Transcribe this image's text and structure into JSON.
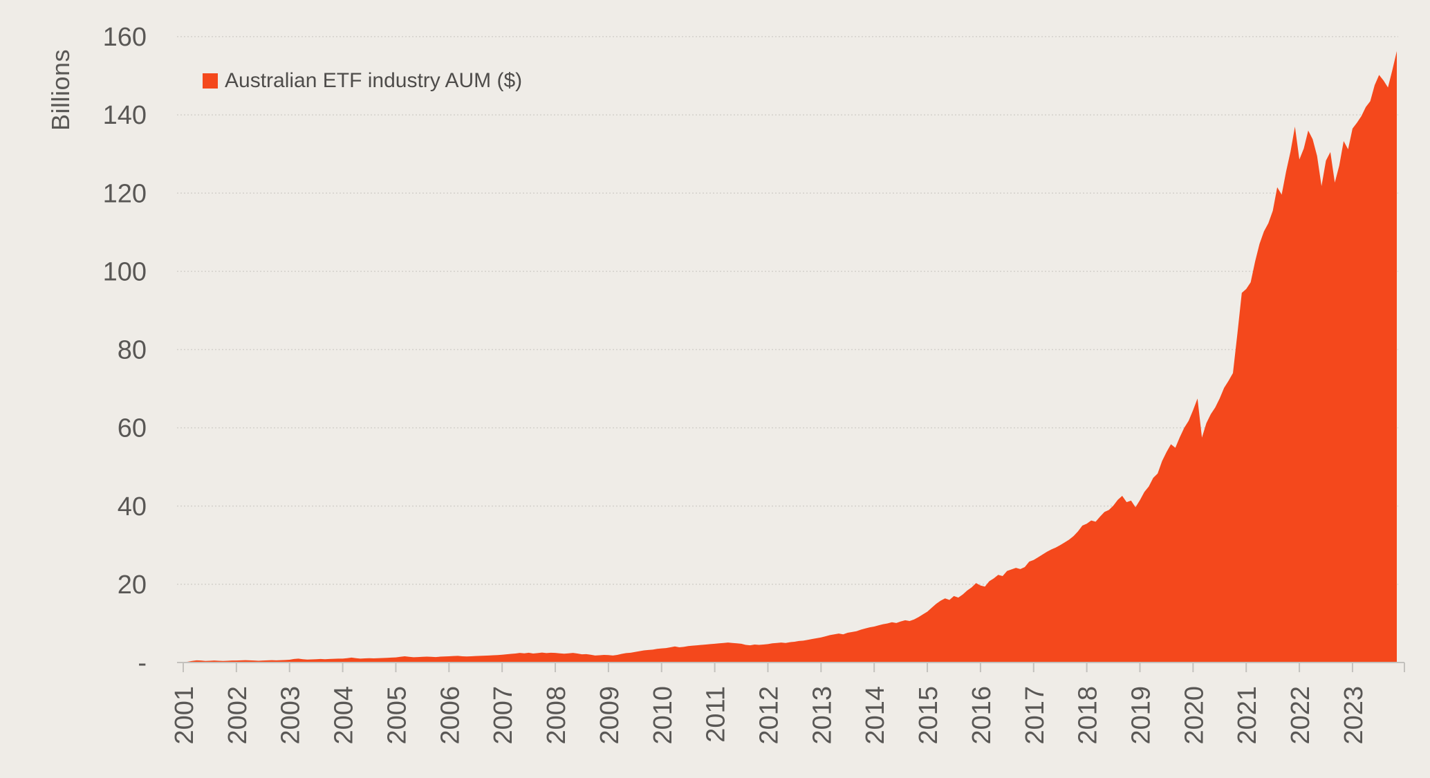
{
  "figure": {
    "background_color": "#EFECE7",
    "text_color": "#595755",
    "gridline_color": "#D3D0CB",
    "axis_line_color": "#C3C1BD"
  },
  "legend": {
    "label": "Australian ETF industry AUM ($)",
    "swatch_color": "#F4481C",
    "position": "top-left"
  },
  "y_axis": {
    "title": "Billions",
    "tick_labels": [
      "160",
      "140",
      "120",
      "100",
      "80",
      "60",
      "40",
      "20",
      "-"
    ],
    "tick_values": [
      160,
      140,
      120,
      100,
      80,
      60,
      40,
      20,
      0
    ]
  },
  "x_axis": {
    "tick_labels": [
      "2001",
      "2002",
      "2003",
      "2004",
      "2005",
      "2006",
      "2007",
      "2008",
      "2009",
      "2010",
      "2011",
      "2012",
      "2013",
      "2014",
      "2015",
      "2016",
      "2017",
      "2018",
      "2019",
      "2020",
      "2021",
      "2022",
      "2023"
    ],
    "label_rotation_degrees": -90
  },
  "chart_data": {
    "type": "area",
    "title": "",
    "xlabel": "",
    "ylabel": "Billions",
    "ylim": [
      0,
      160
    ],
    "grid": true,
    "legend_position": "top-left",
    "x_start": "2001-01",
    "x_end": "2023-11",
    "x_frequency": "monthly",
    "x_year_ticks": [
      2001,
      2002,
      2003,
      2004,
      2005,
      2006,
      2007,
      2008,
      2009,
      2010,
      2011,
      2012,
      2013,
      2014,
      2015,
      2016,
      2017,
      2018,
      2019,
      2020,
      2021,
      2022,
      2023
    ],
    "series": [
      {
        "name": "Australian ETF industry AUM ($)",
        "color": "#F4481C",
        "unit": "billions AUD",
        "values": [
          0.1,
          0.2,
          0.4,
          0.55,
          0.5,
          0.4,
          0.45,
          0.5,
          0.45,
          0.4,
          0.45,
          0.5,
          0.5,
          0.55,
          0.6,
          0.55,
          0.5,
          0.45,
          0.5,
          0.55,
          0.6,
          0.55,
          0.6,
          0.65,
          0.7,
          0.9,
          1.0,
          0.85,
          0.75,
          0.8,
          0.85,
          0.9,
          0.85,
          0.9,
          0.95,
          1.0,
          1.0,
          1.1,
          1.25,
          1.1,
          1.0,
          1.05,
          1.1,
          1.05,
          1.1,
          1.15,
          1.2,
          1.25,
          1.3,
          1.45,
          1.6,
          1.45,
          1.35,
          1.4,
          1.45,
          1.5,
          1.45,
          1.4,
          1.5,
          1.55,
          1.6,
          1.65,
          1.7,
          1.6,
          1.55,
          1.6,
          1.65,
          1.7,
          1.75,
          1.8,
          1.85,
          1.9,
          2.0,
          2.1,
          2.2,
          2.3,
          2.45,
          2.35,
          2.5,
          2.3,
          2.4,
          2.55,
          2.4,
          2.5,
          2.45,
          2.35,
          2.25,
          2.35,
          2.45,
          2.3,
          2.1,
          2.15,
          2.0,
          1.8,
          1.85,
          1.95,
          1.9,
          1.8,
          1.95,
          2.2,
          2.4,
          2.5,
          2.7,
          2.9,
          3.1,
          3.2,
          3.3,
          3.5,
          3.6,
          3.7,
          3.9,
          4.1,
          3.9,
          4.0,
          4.2,
          4.3,
          4.4,
          4.5,
          4.6,
          4.7,
          4.8,
          4.9,
          5.0,
          5.1,
          5.0,
          4.9,
          4.8,
          4.5,
          4.4,
          4.6,
          4.5,
          4.6,
          4.7,
          4.9,
          5.0,
          5.1,
          5.0,
          5.2,
          5.3,
          5.5,
          5.6,
          5.8,
          6.0,
          6.2,
          6.4,
          6.7,
          7.0,
          7.2,
          7.4,
          7.2,
          7.6,
          7.8,
          8.0,
          8.4,
          8.7,
          9.0,
          9.2,
          9.5,
          9.8,
          10.0,
          10.3,
          10.1,
          10.5,
          10.8,
          10.6,
          11.0,
          11.6,
          12.3,
          13.0,
          14.0,
          15.0,
          15.8,
          16.4,
          16.0,
          17.0,
          16.6,
          17.4,
          18.4,
          19.2,
          20.3,
          19.7,
          19.4,
          20.8,
          21.5,
          22.4,
          22.1,
          23.4,
          23.8,
          24.2,
          23.9,
          24.4,
          25.8,
          26.2,
          26.9,
          27.6,
          28.3,
          28.9,
          29.4,
          30.0,
          30.7,
          31.4,
          32.3,
          33.5,
          35.0,
          35.5,
          36.3,
          36.0,
          37.3,
          38.5,
          39.0,
          40.1,
          41.6,
          42.6,
          41.0,
          41.4,
          39.7,
          41.5,
          43.6,
          45.0,
          47.2,
          48.3,
          51.5,
          53.8,
          55.8,
          54.9,
          57.6,
          60.0,
          61.8,
          64.5,
          67.5,
          57.5,
          61.2,
          63.5,
          65.2,
          67.5,
          70.2,
          72.0,
          74.0,
          84.0,
          94.5,
          95.5,
          97.2,
          102.5,
          107.0,
          110.2,
          112.3,
          115.5,
          121.5,
          119.6,
          125.5,
          130.6,
          137.0,
          128.6,
          131.4,
          136.0,
          133.8,
          129.5,
          121.8,
          128.3,
          130.5,
          122.7,
          127.0,
          133.3,
          131.2,
          136.5,
          138.0,
          139.7,
          142.0,
          143.5,
          147.6,
          150.2,
          148.8,
          147.0,
          151.5,
          156.3
        ]
      }
    ]
  }
}
